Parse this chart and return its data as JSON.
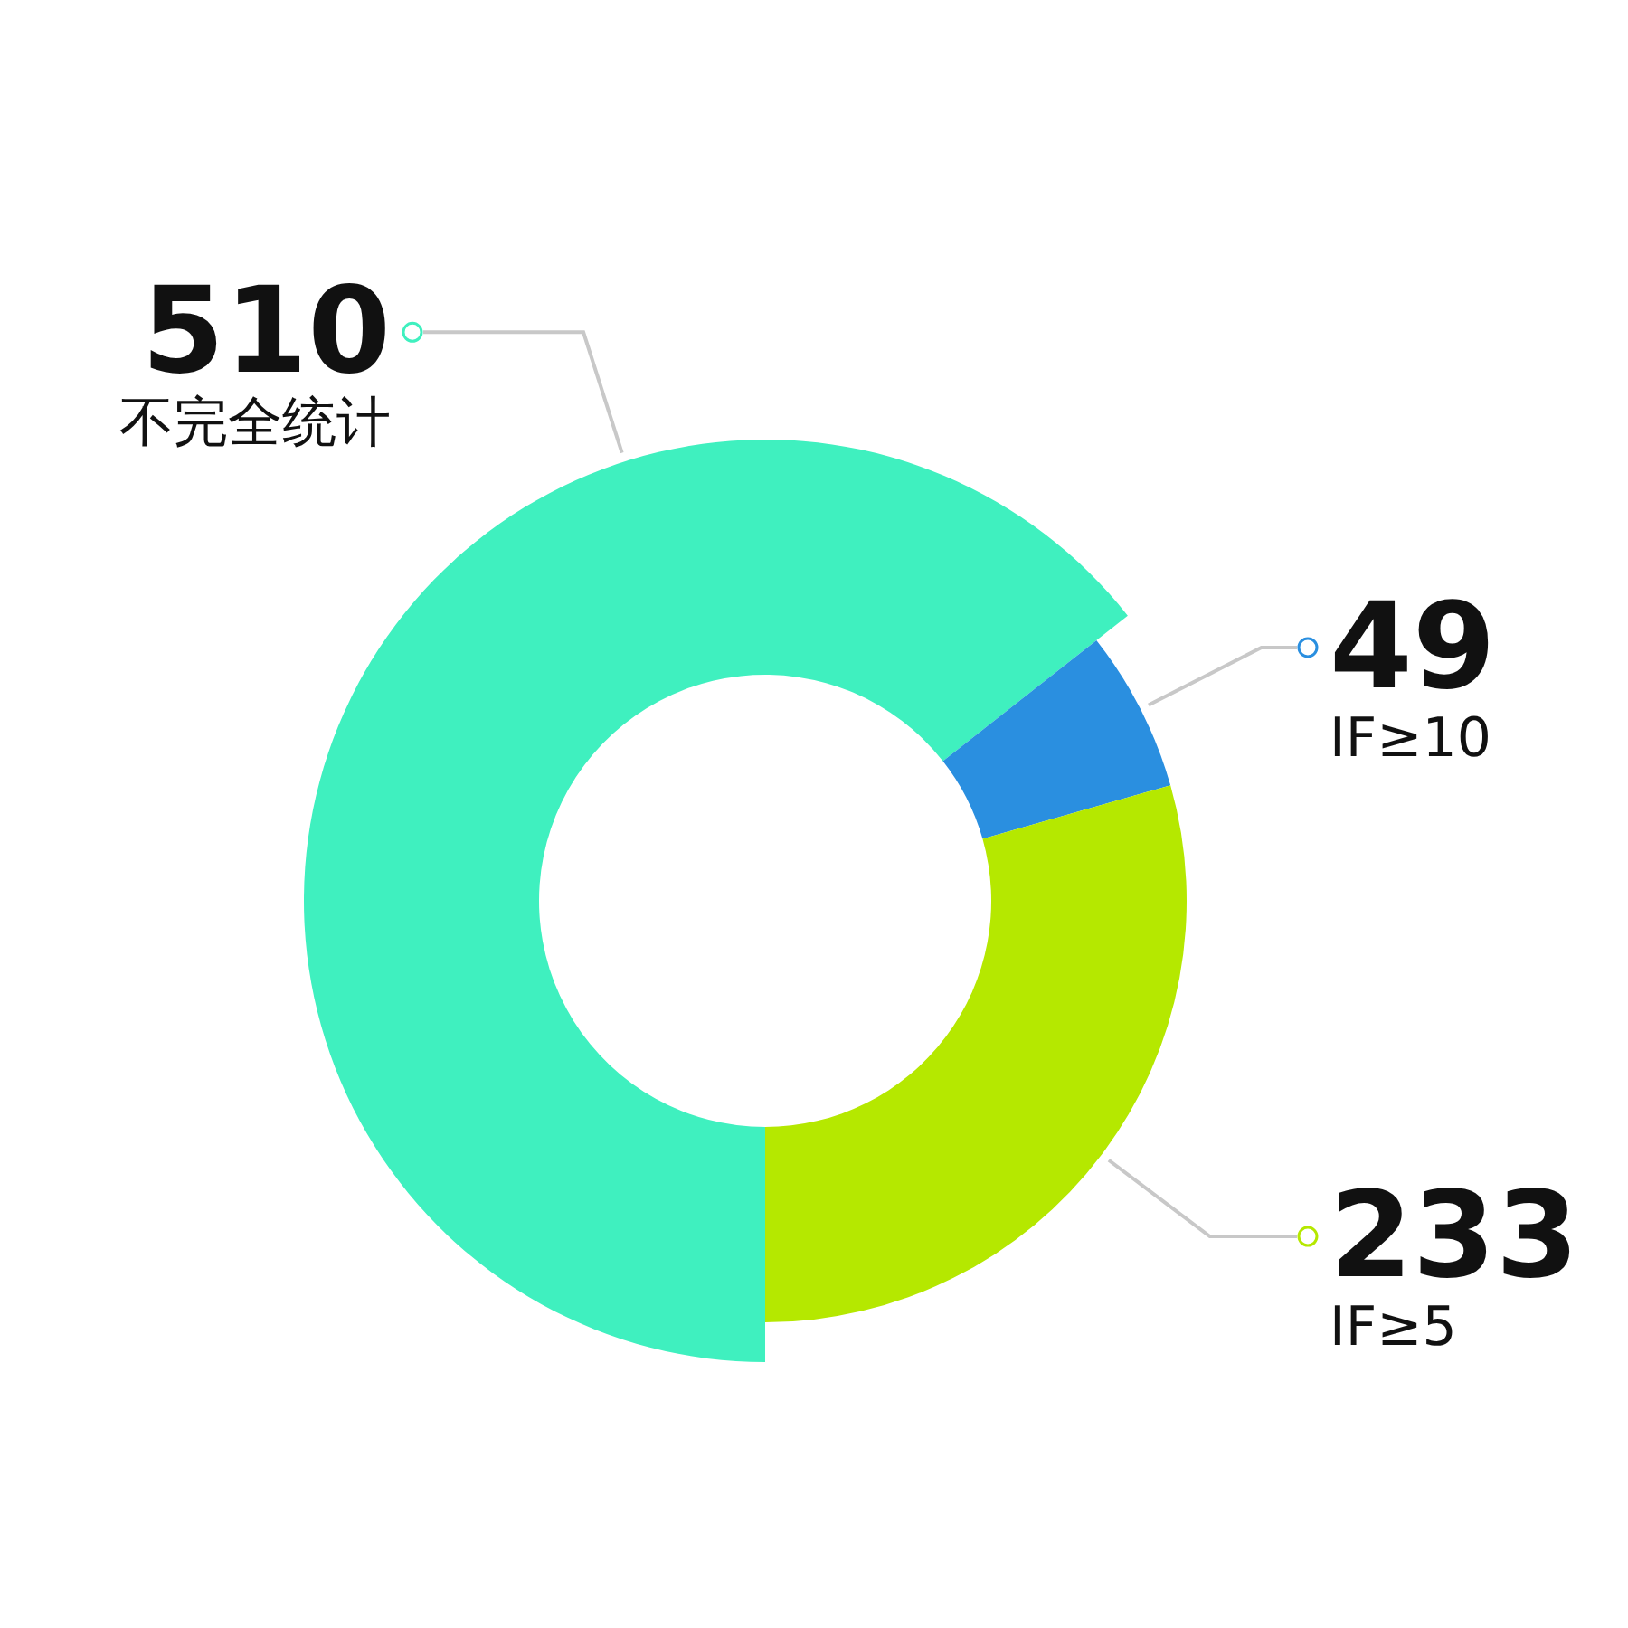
{
  "chart_data": {
    "type": "donut",
    "categories": [
      "不完全统计",
      "IF≥10",
      "IF≥5"
    ],
    "values": [
      510,
      49,
      233
    ],
    "colors": [
      "#3ff0bf",
      "#2a8fe0",
      "#b5e800"
    ],
    "data_labels": true,
    "legend": "right"
  }
}
